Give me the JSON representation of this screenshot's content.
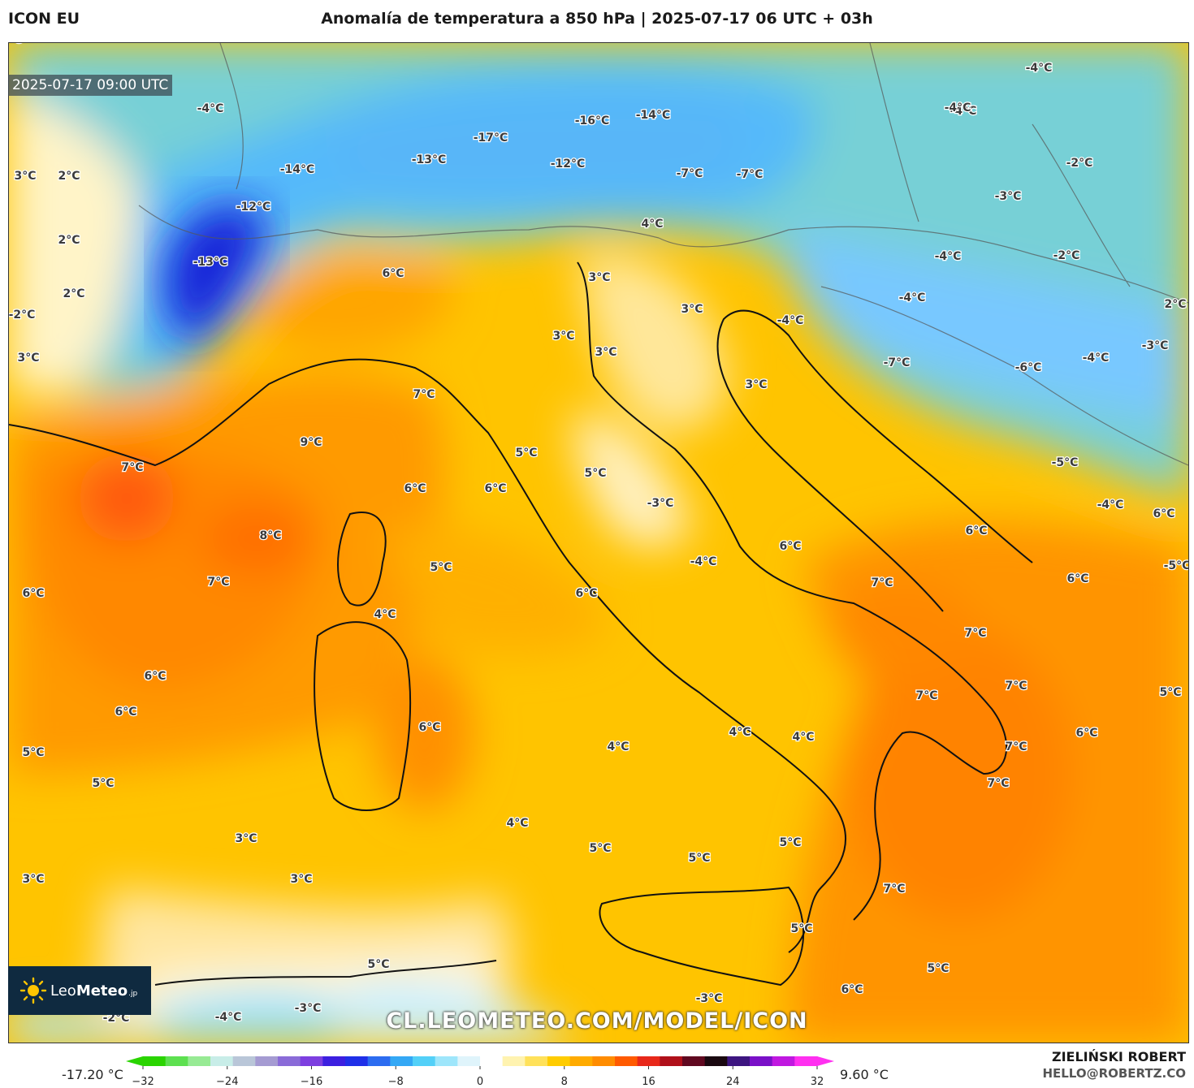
{
  "header": {
    "model": "ICON EU",
    "title": "Anomalía de temperatura a 850 hPa | 2025-07-17 06 UTC + 03h"
  },
  "map": {
    "valid_time": "2025-07-17 09:00 UTC",
    "watermark": "CL.LEOMETEO.COM/MODEL/ICON",
    "logo": {
      "brand_light": "Leo",
      "brand_bold": "Meteo",
      "suffix": ".jp"
    },
    "labels": [
      "-4°C",
      "-4°C",
      "-4°C",
      "-16°C",
      "-14°C",
      "-17°C",
      "-13°C",
      "-12°C",
      "-14°C",
      "-12°C",
      "-7°C",
      "-7°C",
      "-13°C",
      "3°C",
      "2°C",
      "2°C",
      "2°C",
      "-2°C",
      "3°C",
      "6°C",
      "4°C",
      "3°C",
      "3°C",
      "3°C",
      "3°C",
      "3°C",
      "-4°C",
      "-2°C",
      "-3°C",
      "-4°C",
      "-2°C",
      "-4°C",
      "-4°C",
      "2°C",
      "-7°C",
      "-6°C",
      "-4°C",
      "-3°C",
      "-5°C",
      "-4°C",
      "7°C",
      "9°C",
      "7°C",
      "6°C",
      "6°C",
      "5°C",
      "5°C",
      "8°C",
      "7°C",
      "5°C",
      "-3°C",
      "-4°C",
      "6°C",
      "6°C",
      "6°C",
      "6°C",
      "4°C",
      "7°C",
      "6°C",
      "7°C",
      "6°C",
      "-5°C",
      "6°C",
      "6°C",
      "5°C",
      "4°C",
      "4°C",
      "4°C",
      "7°C",
      "7°C",
      "7°C",
      "7°C",
      "7°C",
      "5°C",
      "3°C",
      "3°C",
      "3°C",
      "4°C",
      "5°C",
      "5°C",
      "5°C",
      "7°C",
      "6°C",
      "6°C",
      "6°C",
      "5°C",
      "5°C",
      "5°C",
      "6°C",
      "5°C",
      "-2°C",
      "-4°C",
      "-3°C",
      "-3°C",
      "-4°C"
    ]
  },
  "colorbar": {
    "min_label": "-17.20 °C",
    "max_label": "9.60 °C",
    "ticks": [
      "−32",
      "−24",
      "−16",
      "−8",
      "0",
      "8",
      "16",
      "24",
      "32"
    ],
    "range": [
      -32,
      32
    ],
    "colors": [
      "#2ad400",
      "#5de050",
      "#97ea94",
      "#c8ede8",
      "#b9c6d8",
      "#a59bd2",
      "#8a6bd8",
      "#7d3fe0",
      "#3c1fe0",
      "#1f2fe8",
      "#2c6cf0",
      "#34a8f5",
      "#53d0f8",
      "#9ee6fb",
      "#dff4fb",
      "#ffffff",
      "#fff3b0",
      "#ffe15a",
      "#ffcc00",
      "#ffab00",
      "#ff8c00",
      "#ff5a00",
      "#e8281a",
      "#b0101a",
      "#600820",
      "#1a0810",
      "#3d1580",
      "#7a10c8",
      "#c018e0",
      "#ff30f0"
    ]
  },
  "credit": {
    "author": "ZIELIŃSKI ROBERT",
    "email": "HELLO@ROBERTZ.CO"
  }
}
